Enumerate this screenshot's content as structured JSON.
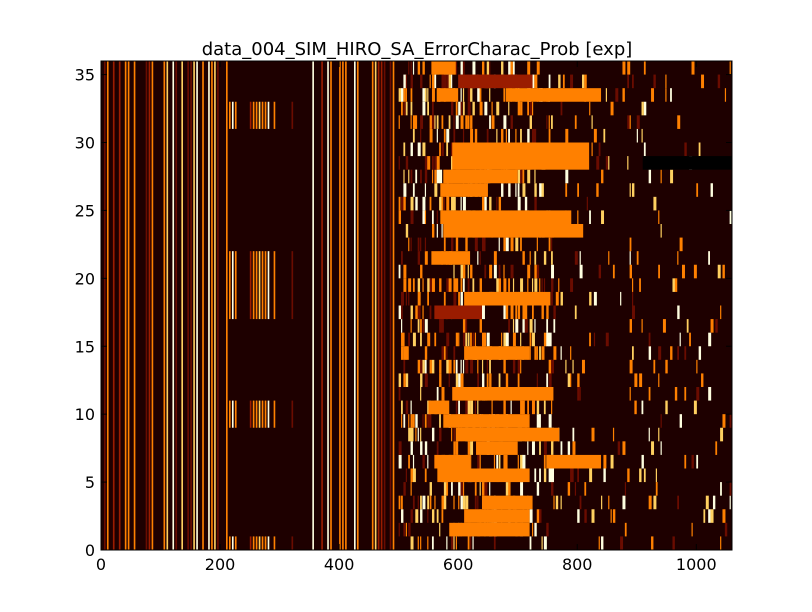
{
  "chart_data": {
    "type": "heatmap",
    "title": "data_004_SIM_HIRO_SA_ErrorCharac_Prob [exp]",
    "xlabel": "",
    "ylabel": "",
    "xlim": [
      0,
      1060
    ],
    "ylim": [
      0,
      36
    ],
    "x_ticks": [
      0,
      200,
      400,
      600,
      800,
      1000
    ],
    "y_ticks": [
      0,
      5,
      10,
      15,
      20,
      25,
      30,
      35
    ],
    "grid": false,
    "colormap": "afmhot",
    "colors": {
      "background": "#1e0000",
      "dark": "#1e0000",
      "low": "#6a0c00",
      "mid": "#9a1c00",
      "orange": "#ff8000",
      "bright": "#ffd060",
      "white": "#ffffe0",
      "black": "#000000"
    },
    "rows": 36,
    "columns": 1060,
    "regions": [
      {
        "x0": 0,
        "x1": 500,
        "y0": 0,
        "y1": 36,
        "pattern": "dense vertical stripes",
        "dominant": "orange"
      },
      {
        "x0": 215,
        "x1": 325,
        "y0": 33,
        "y1": 36,
        "pattern": "solid",
        "value": "dark"
      },
      {
        "x0": 215,
        "x1": 325,
        "y0": 22,
        "y1": 31,
        "pattern": "solid",
        "value": "dark"
      },
      {
        "x0": 215,
        "x1": 325,
        "y0": 11,
        "y1": 17,
        "pattern": "solid",
        "value": "dark"
      },
      {
        "x0": 215,
        "x1": 325,
        "y0": 1,
        "y1": 9,
        "pattern": "solid",
        "value": "dark"
      },
      {
        "x0": 555,
        "x1": 595,
        "y0": 35,
        "y1": 36,
        "value": "orange"
      },
      {
        "x0": 600,
        "x1": 725,
        "y0": 34,
        "y1": 35,
        "value": "mid"
      },
      {
        "x0": 565,
        "x1": 600,
        "y0": 33,
        "y1": 34,
        "value": "orange"
      },
      {
        "x0": 680,
        "x1": 840,
        "y0": 33,
        "y1": 34,
        "value": "orange"
      },
      {
        "x0": 590,
        "x1": 820,
        "y0": 28,
        "y1": 30,
        "value": "orange"
      },
      {
        "x0": 910,
        "x1": 1060,
        "y0": 28,
        "y1": 29,
        "value": "black"
      },
      {
        "x0": 575,
        "x1": 700,
        "y0": 27,
        "y1": 28,
        "value": "orange"
      },
      {
        "x0": 570,
        "x1": 650,
        "y0": 26,
        "y1": 27,
        "value": "orange"
      },
      {
        "x0": 570,
        "x1": 790,
        "y0": 24,
        "y1": 25,
        "value": "orange"
      },
      {
        "x0": 575,
        "x1": 810,
        "y0": 23,
        "y1": 24,
        "value": "orange"
      },
      {
        "x0": 555,
        "x1": 620,
        "y0": 21,
        "y1": 22,
        "value": "orange"
      },
      {
        "x0": 610,
        "x1": 755,
        "y0": 18,
        "y1": 19,
        "value": "orange"
      },
      {
        "x0": 560,
        "x1": 640,
        "y0": 17,
        "y1": 18,
        "value": "mid"
      },
      {
        "x0": 610,
        "x1": 720,
        "y0": 14,
        "y1": 15,
        "value": "orange"
      },
      {
        "x0": 590,
        "x1": 760,
        "y0": 11,
        "y1": 12,
        "value": "orange"
      },
      {
        "x0": 550,
        "x1": 585,
        "y0": 10,
        "y1": 11,
        "value": "orange"
      },
      {
        "x0": 575,
        "x1": 720,
        "y0": 9,
        "y1": 10,
        "value": "orange"
      },
      {
        "x0": 600,
        "x1": 770,
        "y0": 8,
        "y1": 9,
        "value": "orange"
      },
      {
        "x0": 630,
        "x1": 700,
        "y0": 7,
        "y1": 8,
        "value": "orange"
      },
      {
        "x0": 560,
        "x1": 620,
        "y0": 6,
        "y1": 7,
        "value": "orange"
      },
      {
        "x0": 750,
        "x1": 840,
        "y0": 6,
        "y1": 7,
        "value": "orange"
      },
      {
        "x0": 565,
        "x1": 720,
        "y0": 5,
        "y1": 6,
        "value": "orange"
      },
      {
        "x0": 640,
        "x1": 725,
        "y0": 3,
        "y1": 4,
        "value": "orange"
      },
      {
        "x0": 610,
        "x1": 720,
        "y0": 2,
        "y1": 3,
        "value": "orange"
      },
      {
        "x0": 585,
        "x1": 720,
        "y0": 1,
        "y1": 2,
        "value": "orange"
      }
    ]
  }
}
